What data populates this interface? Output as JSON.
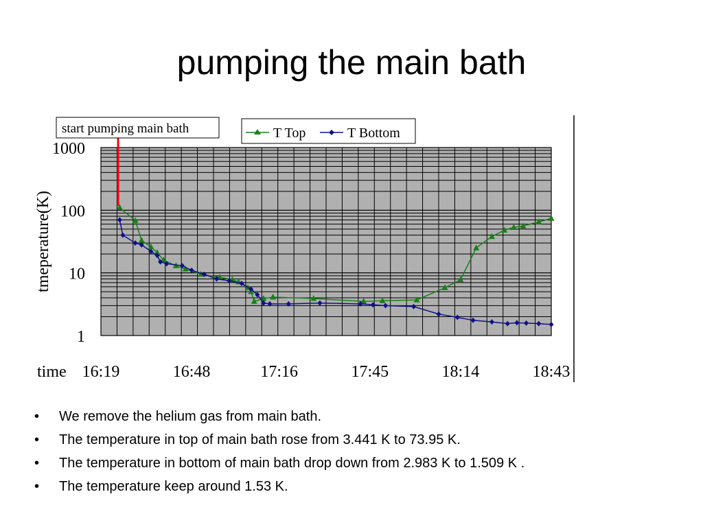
{
  "slide": {
    "title": "pumping the main bath",
    "bullets": [
      "We remove the helium gas from main bath.",
      "The temperature in top of main bath rose from 3.441 K to 73.95 K.",
      "The temperature in bottom of main bath drop down from 2.983 K to 1.509 K .",
      "The temperature keep around 1.53 K."
    ],
    "bullet_symbol": "•"
  },
  "chart_data": {
    "type": "line",
    "title": "",
    "xlabel": "time",
    "ylabel": "tmeperature(K)",
    "yscale": "log",
    "ylim": [
      1,
      1000
    ],
    "xlim": [
      "16:19",
      "18:43"
    ],
    "x_ticks": [
      "16:19",
      "16:48",
      "17:16",
      "17:45",
      "18:14",
      "18:43"
    ],
    "y_ticks": [
      "1000",
      "100",
      "10",
      "1"
    ],
    "grid": true,
    "legend_position": "top",
    "annotation": {
      "text": "start pumping main bath",
      "time": "16:25"
    },
    "series": [
      {
        "name": "T Top",
        "color": "#1a7f1a",
        "marker": "triangle",
        "x": [
          "16:25",
          "16:30",
          "16:32",
          "16:35",
          "16:37",
          "16:39",
          "16:43",
          "16:46",
          "16:51",
          "16:57",
          "17:01",
          "17:03",
          "17:06",
          "17:07",
          "17:08",
          "17:11",
          "17:14",
          "17:27",
          "17:43",
          "17:49",
          "18:00",
          "18:09",
          "18:14",
          "18:19",
          "18:24",
          "18:28",
          "18:31",
          "18:34",
          "18:39",
          "18:43"
        ],
        "y": [
          110,
          68,
          33,
          26,
          21,
          16,
          13,
          11.5,
          9.5,
          8.5,
          7.8,
          7.2,
          5.8,
          5,
          3.5,
          3.9,
          4.1,
          3.9,
          3.5,
          3.6,
          3.7,
          5.8,
          7.8,
          25,
          38,
          48,
          53,
          56,
          65,
          74
        ]
      },
      {
        "name": "T Bottom",
        "color": "#10108a",
        "marker": "diamond",
        "x": [
          "16:25",
          "16:26",
          "16:30",
          "16:32",
          "16:35",
          "16:37",
          "16:38",
          "16:40",
          "16:45",
          "16:48",
          "16:52",
          "16:56",
          "17:00",
          "17:04",
          "17:07",
          "17:09",
          "17:11",
          "17:13",
          "17:19",
          "17:29",
          "17:42",
          "17:46",
          "17:50",
          "17:59",
          "18:07",
          "18:13",
          "18:18",
          "18:24",
          "18:29",
          "18:32",
          "18:35",
          "18:39",
          "18:43"
        ],
        "y": [
          70,
          40,
          30,
          28,
          22,
          19,
          15,
          14,
          13,
          11,
          9.5,
          8,
          7.5,
          6.8,
          5.5,
          4.5,
          3.3,
          3.2,
          3.2,
          3.3,
          3.2,
          3.1,
          3.0,
          2.9,
          2.2,
          1.95,
          1.75,
          1.65,
          1.55,
          1.6,
          1.58,
          1.55,
          1.5
        ]
      }
    ]
  }
}
